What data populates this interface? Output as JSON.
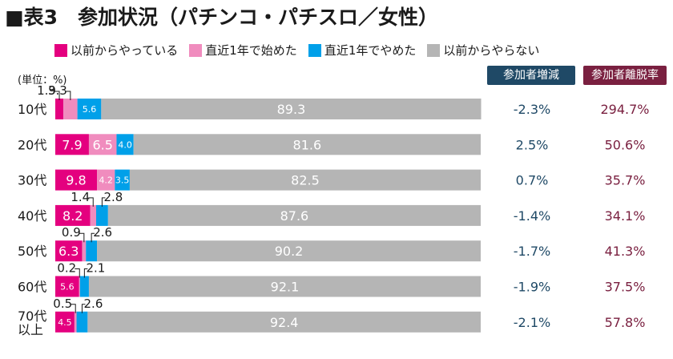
{
  "chart_data": {
    "type": "bar",
    "stacked": true,
    "orientation": "horizontal",
    "title": "■表3　参加状況（パチンコ・パチスロ／女性）",
    "unit_label": "(単位：%)",
    "categories": [
      "10代",
      "20代",
      "30代",
      "40代",
      "50代",
      "60代",
      "70代以上"
    ],
    "series": [
      {
        "name": "以前からやっている",
        "color": "#e4007f",
        "values": [
          1.9,
          7.9,
          9.8,
          8.2,
          6.3,
          5.6,
          4.5
        ]
      },
      {
        "name": "直近1年で始めた",
        "color": "#f08cbe",
        "values": [
          3.3,
          6.5,
          4.2,
          1.4,
          0.9,
          0.2,
          0.5
        ]
      },
      {
        "name": "直近1年でやめた",
        "color": "#00a0e9",
        "values": [
          5.6,
          4.0,
          3.5,
          2.8,
          2.6,
          2.1,
          2.6
        ]
      },
      {
        "name": "以前からやらない",
        "color": "#b5b5b5",
        "values": [
          89.3,
          81.6,
          82.5,
          87.6,
          90.2,
          92.1,
          92.4
        ]
      }
    ],
    "xlim": [
      0,
      100
    ],
    "side_columns": [
      {
        "name": "参加者増減",
        "values": [
          "-2.3%",
          "2.5%",
          "0.7%",
          "-1.4%",
          "-1.7%",
          "-1.9%",
          "-2.1%"
        ]
      },
      {
        "name": "参加者離脱率",
        "values": [
          "294.7%",
          "50.6%",
          "35.7%",
          "34.1%",
          "41.3%",
          "37.5%",
          "57.8%"
        ]
      }
    ]
  }
}
